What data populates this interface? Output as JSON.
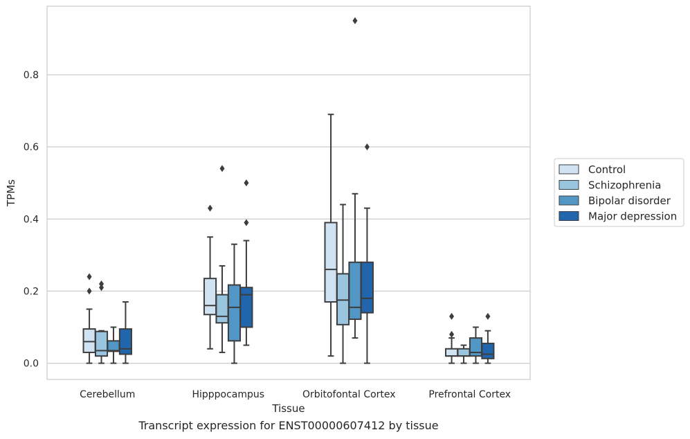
{
  "caption": "Transcript expression for ENST00000607412 by tissue",
  "chart_data": {
    "type": "box",
    "title": "",
    "xlabel": "Tissue",
    "ylabel": "TPMs",
    "ylim": [
      -0.045,
      0.99
    ],
    "yticks": [
      0.0,
      0.2,
      0.4,
      0.6,
      0.8
    ],
    "ytick_labels": [
      "0.0",
      "0.2",
      "0.4",
      "0.6",
      "0.8"
    ],
    "grid": "horizontal",
    "legend_position": "right",
    "categories": [
      "Cerebellum",
      "Hipppocampus",
      "Orbitofontal Cortex",
      "Prefrontal Cortex"
    ],
    "series": [
      {
        "name": "Control",
        "color": "#d1e2f2",
        "boxes": [
          {
            "whislo": 0.0,
            "q1": 0.03,
            "med": 0.06,
            "q3": 0.095,
            "whishi": 0.15,
            "fliers": [
              0.2,
              0.24
            ]
          },
          {
            "whislo": 0.04,
            "q1": 0.135,
            "med": 0.16,
            "q3": 0.235,
            "whishi": 0.35,
            "fliers": [
              0.43
            ]
          },
          {
            "whislo": 0.02,
            "q1": 0.17,
            "med": 0.26,
            "q3": 0.39,
            "whishi": 0.69,
            "fliers": []
          },
          {
            "whislo": 0.0,
            "q1": 0.02,
            "med": 0.02,
            "q3": 0.04,
            "whishi": 0.07,
            "fliers": [
              0.08,
              0.13
            ]
          }
        ]
      },
      {
        "name": "Schizophrenia",
        "color": "#9ac5de",
        "boxes": [
          {
            "whislo": 0.0,
            "q1": 0.02,
            "med": 0.035,
            "q3": 0.088,
            "whishi": 0.09,
            "fliers": [
              0.21,
              0.22
            ]
          },
          {
            "whislo": 0.03,
            "q1": 0.112,
            "med": 0.13,
            "q3": 0.19,
            "whishi": 0.27,
            "fliers": [
              0.54
            ]
          },
          {
            "whislo": 0.0,
            "q1": 0.107,
            "med": 0.175,
            "q3": 0.248,
            "whishi": 0.44,
            "fliers": []
          },
          {
            "whislo": 0.0,
            "q1": 0.02,
            "med": 0.02,
            "q3": 0.04,
            "whishi": 0.05,
            "fliers": []
          }
        ]
      },
      {
        "name": "Bipolar disorder",
        "color": "#5296c6",
        "boxes": [
          {
            "whislo": 0.0,
            "q1": 0.033,
            "med": 0.035,
            "q3": 0.062,
            "whishi": 0.1,
            "fliers": []
          },
          {
            "whislo": 0.0,
            "q1": 0.062,
            "med": 0.155,
            "q3": 0.217,
            "whishi": 0.33,
            "fliers": []
          },
          {
            "whislo": 0.07,
            "q1": 0.122,
            "med": 0.155,
            "q3": 0.28,
            "whishi": 0.47,
            "fliers": [
              0.95
            ]
          },
          {
            "whislo": 0.0,
            "q1": 0.02,
            "med": 0.03,
            "q3": 0.07,
            "whishi": 0.1,
            "fliers": []
          }
        ]
      },
      {
        "name": "Major depression",
        "color": "#2166ac",
        "boxes": [
          {
            "whislo": 0.0,
            "q1": 0.025,
            "med": 0.04,
            "q3": 0.095,
            "whishi": 0.17,
            "fliers": []
          },
          {
            "whislo": 0.05,
            "q1": 0.1,
            "med": 0.19,
            "q3": 0.21,
            "whishi": 0.34,
            "fliers": [
              0.39,
              0.5
            ]
          },
          {
            "whislo": 0.0,
            "q1": 0.14,
            "med": 0.18,
            "q3": 0.28,
            "whishi": 0.43,
            "fliers": [
              0.6
            ]
          },
          {
            "whislo": 0.0,
            "q1": 0.013,
            "med": 0.025,
            "q3": 0.055,
            "whishi": 0.09,
            "fliers": [
              0.13
            ]
          }
        ]
      }
    ]
  }
}
